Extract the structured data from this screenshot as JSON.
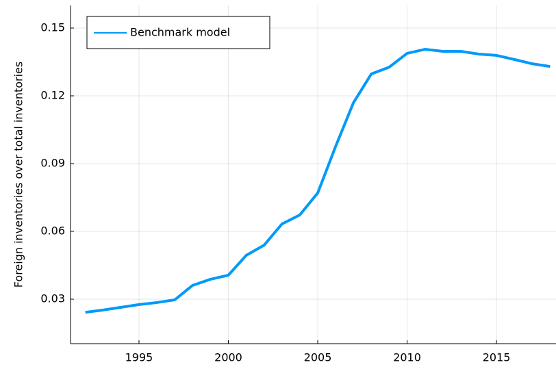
{
  "chart_data": {
    "type": "line",
    "ylabel": "Foreign inventories over total inventories",
    "x": [
      1992,
      1993,
      1994,
      1995,
      1996,
      1997,
      1998,
      1999,
      2000,
      2001,
      2002,
      2003,
      2004,
      2005,
      2006,
      2007,
      2008,
      2009,
      2010,
      2011,
      2012,
      2013,
      2014,
      2015,
      2016,
      2017,
      2018
    ],
    "series": [
      {
        "name": "Benchmark model",
        "color": "#009af9",
        "values": [
          0.0242,
          0.0252,
          0.0264,
          0.0276,
          0.0285,
          0.0297,
          0.0361,
          0.0388,
          0.0406,
          0.0494,
          0.0539,
          0.0633,
          0.0673,
          0.077,
          0.0976,
          0.117,
          0.1297,
          0.1327,
          0.1388,
          0.1406,
          0.1397,
          0.1397,
          0.1385,
          0.1379,
          0.1361,
          0.1342,
          0.133
        ]
      }
    ],
    "xlim": [
      1991.17,
      2018.33
    ],
    "xticks": [
      1995,
      2000,
      2005,
      2010,
      2015
    ],
    "ylim": [
      0.0103,
      0.16
    ],
    "yticks": [
      0.03,
      0.06,
      0.09,
      0.12,
      0.15
    ],
    "grid": true,
    "legend": "top-left"
  }
}
